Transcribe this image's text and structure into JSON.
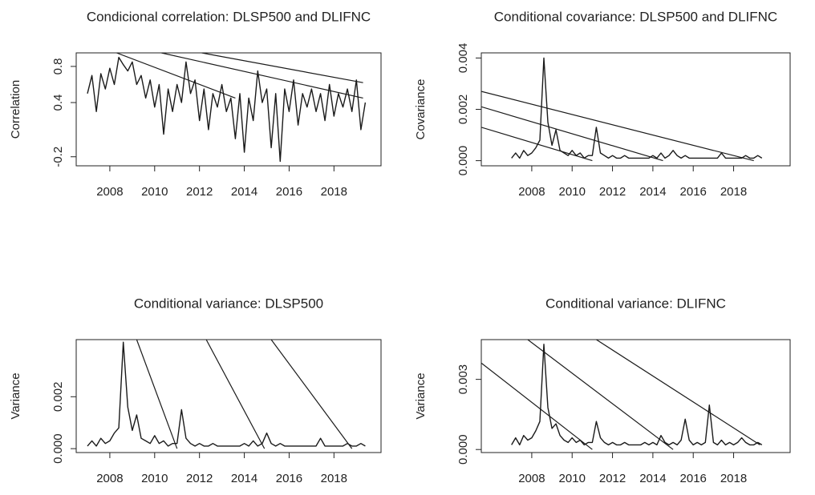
{
  "chart_data": [
    {
      "type": "line",
      "title": "Condicional correlation: DLSP500 and DLIFNC",
      "ylabel": "Correlation",
      "color": "#1a1a1a",
      "xlim": [
        2006.5,
        2020.1
      ],
      "ylim": [
        -0.3,
        0.95
      ],
      "xticks": [
        2008,
        2010,
        2012,
        2014,
        2016,
        2018
      ],
      "yticks": [
        -0.2,
        0.4,
        0.8
      ],
      "x": [
        2007.0,
        2007.2,
        2007.4,
        2007.6,
        2007.8,
        2008.0,
        2008.2,
        2008.4,
        2008.6,
        2008.8,
        2009.0,
        2009.2,
        2009.4,
        2009.6,
        2009.8,
        2010.0,
        2010.2,
        2010.4,
        2010.6,
        2010.8,
        2011.0,
        2011.2,
        2011.4,
        2011.6,
        2011.8,
        2012.0,
        2012.2,
        2012.4,
        2012.6,
        2012.8,
        2013.0,
        2013.2,
        2013.4,
        2013.6,
        2013.8,
        2014.0,
        2014.2,
        2014.4,
        2014.6,
        2014.8,
        2015.0,
        2015.2,
        2015.4,
        2015.6,
        2015.8,
        2016.0,
        2016.2,
        2016.4,
        2016.6,
        2016.8,
        2017.0,
        2017.2,
        2017.4,
        2017.6,
        2017.8,
        2018.0,
        2018.2,
        2018.4,
        2018.6,
        2018.8,
        2019.0,
        2019.2,
        2019.4
      ],
      "values": [
        0.5,
        0.7,
        0.3,
        0.72,
        0.55,
        0.78,
        0.6,
        0.9,
        0.82,
        0.75,
        0.85,
        0.6,
        0.7,
        0.45,
        0.65,
        0.35,
        0.6,
        0.05,
        0.55,
        0.3,
        0.6,
        0.4,
        0.85,
        0.5,
        0.65,
        0.2,
        0.55,
        0.1,
        0.5,
        0.35,
        0.6,
        0.3,
        0.45,
        0.0,
        0.5,
        -0.15,
        0.45,
        0.2,
        0.75,
        0.4,
        0.55,
        -0.1,
        0.5,
        -0.25,
        0.55,
        0.3,
        0.65,
        0.15,
        0.5,
        0.35,
        0.55,
        0.3,
        0.5,
        0.2,
        0.6,
        0.25,
        0.5,
        0.35,
        0.55,
        0.3,
        0.65,
        0.1,
        0.4
      ],
      "segments": [
        {
          "x": [
            2008.3,
            2013.6
          ],
          "y": [
            0.95,
            0.45
          ]
        },
        {
          "x": [
            2010.3,
            2019.3
          ],
          "y": [
            0.95,
            0.45
          ]
        },
        {
          "x": [
            2012.1,
            2019.3
          ],
          "y": [
            0.95,
            0.62
          ]
        }
      ]
    },
    {
      "type": "line",
      "title": "Conditional covariance: DLSP500 and DLIFNC",
      "ylabel": "Covariance",
      "color": "#1a1a1a",
      "xlim": [
        2005.5,
        2020.8
      ],
      "ylim": [
        -0.0002,
        0.0042
      ],
      "xticks": [
        2008,
        2010,
        2012,
        2014,
        2016,
        2018
      ],
      "yticks": [
        {
          "value": 0,
          "label": "0.000"
        },
        {
          "value": 0.002,
          "label": "0.002"
        },
        {
          "value": 0.004,
          "label": "0.004"
        }
      ],
      "x": [
        2007.0,
        2007.2,
        2007.4,
        2007.6,
        2007.8,
        2008.0,
        2008.2,
        2008.4,
        2008.6,
        2008.8,
        2009.0,
        2009.2,
        2009.4,
        2009.6,
        2009.8,
        2010.0,
        2010.2,
        2010.4,
        2010.6,
        2010.8,
        2011.0,
        2011.2,
        2011.4,
        2011.6,
        2011.8,
        2012.0,
        2012.2,
        2012.4,
        2012.6,
        2012.8,
        2013.0,
        2013.2,
        2013.4,
        2013.6,
        2013.8,
        2014.0,
        2014.2,
        2014.4,
        2014.6,
        2014.8,
        2015.0,
        2015.2,
        2015.4,
        2015.6,
        2015.8,
        2016.0,
        2016.2,
        2016.4,
        2016.6,
        2016.8,
        2017.0,
        2017.2,
        2017.4,
        2017.6,
        2017.8,
        2018.0,
        2018.2,
        2018.4,
        2018.6,
        2018.8,
        2019.0,
        2019.2,
        2019.4
      ],
      "values": [
        0.0001,
        0.0003,
        0.0001,
        0.0004,
        0.0002,
        0.0003,
        0.0005,
        0.0008,
        0.004,
        0.0015,
        0.0006,
        0.0012,
        0.0004,
        0.0003,
        0.0002,
        0.0004,
        0.0002,
        0.0003,
        0.0001,
        0.0002,
        0.0002,
        0.0013,
        0.0003,
        0.0002,
        0.0001,
        0.0002,
        0.0001,
        0.0001,
        0.0002,
        0.0001,
        0.0001,
        0.0001,
        0.0001,
        0.0001,
        0.0001,
        0.0002,
        0.0001,
        0.0003,
        0.0001,
        0.0002,
        0.0004,
        0.0002,
        0.0001,
        0.0002,
        0.0001,
        0.0001,
        0.0001,
        0.0001,
        0.0001,
        0.0001,
        0.0001,
        0.0001,
        0.0003,
        0.0001,
        0.0001,
        0.0001,
        0.0001,
        0.0001,
        0.0002,
        0.0001,
        0.0001,
        0.0002,
        0.0001
      ],
      "segments": [
        {
          "x": [
            2005.5,
            2019.0
          ],
          "y": [
            0.0027,
            0.0
          ]
        },
        {
          "x": [
            2005.5,
            2014.5
          ],
          "y": [
            0.0021,
            0.0
          ]
        },
        {
          "x": [
            2005.5,
            2011.0
          ],
          "y": [
            0.0013,
            0.0
          ]
        }
      ]
    },
    {
      "type": "line",
      "title": "Conditional variance: DLSP500",
      "ylabel": "Variance",
      "color": "#1a1a1a",
      "xlim": [
        2006.5,
        2020.1
      ],
      "ylim": [
        -0.00015,
        0.0042
      ],
      "xticks": [
        2008,
        2010,
        2012,
        2014,
        2016,
        2018
      ],
      "yticks": [
        {
          "value": 0,
          "label": "0.000"
        },
        {
          "value": 0.002,
          "label": "0.002"
        }
      ],
      "x": [
        2007.0,
        2007.2,
        2007.4,
        2007.6,
        2007.8,
        2008.0,
        2008.2,
        2008.4,
        2008.6,
        2008.8,
        2009.0,
        2009.2,
        2009.4,
        2009.6,
        2009.8,
        2010.0,
        2010.2,
        2010.4,
        2010.6,
        2010.8,
        2011.0,
        2011.2,
        2011.4,
        2011.6,
        2011.8,
        2012.0,
        2012.2,
        2012.4,
        2012.6,
        2012.8,
        2013.0,
        2013.2,
        2013.4,
        2013.6,
        2013.8,
        2014.0,
        2014.2,
        2014.4,
        2014.6,
        2014.8,
        2015.0,
        2015.2,
        2015.4,
        2015.6,
        2015.8,
        2016.0,
        2016.2,
        2016.4,
        2016.6,
        2016.8,
        2017.0,
        2017.2,
        2017.4,
        2017.6,
        2017.8,
        2018.0,
        2018.2,
        2018.4,
        2018.6,
        2018.8,
        2019.0,
        2019.2,
        2019.4
      ],
      "values": [
        0.0001,
        0.0003,
        0.0001,
        0.0004,
        0.0002,
        0.0003,
        0.0006,
        0.0008,
        0.0041,
        0.0016,
        0.0007,
        0.0013,
        0.0004,
        0.0003,
        0.0002,
        0.0005,
        0.0002,
        0.0003,
        0.0001,
        0.0002,
        0.0002,
        0.0015,
        0.0004,
        0.0002,
        0.0001,
        0.0002,
        0.0001,
        0.0001,
        0.0002,
        0.0001,
        0.0001,
        0.0001,
        0.0001,
        0.0001,
        0.0001,
        0.0002,
        0.0001,
        0.0003,
        0.0001,
        0.0002,
        0.0006,
        0.0002,
        0.0001,
        0.0002,
        0.0001,
        0.0001,
        0.0001,
        0.0001,
        0.0001,
        0.0001,
        0.0001,
        0.0001,
        0.0004,
        0.0001,
        0.0001,
        0.0001,
        0.0001,
        0.0001,
        0.0002,
        0.0001,
        0.0001,
        0.0002,
        0.0001
      ],
      "segments": [
        {
          "x": [
            2009.2,
            2011.0
          ],
          "y": [
            0.0042,
            0.0
          ]
        },
        {
          "x": [
            2012.3,
            2014.9
          ],
          "y": [
            0.0042,
            0.0
          ]
        },
        {
          "x": [
            2015.2,
            2018.8
          ],
          "y": [
            0.0042,
            0.0
          ]
        }
      ]
    },
    {
      "type": "line",
      "title": "Conditional variance: DLIFNC",
      "ylabel": "Variance",
      "color": "#1a1a1a",
      "xlim": [
        2005.5,
        2020.8
      ],
      "ylim": [
        -0.00013,
        0.0047
      ],
      "xticks": [
        2008,
        2010,
        2012,
        2014,
        2016,
        2018
      ],
      "yticks": [
        {
          "value": 0,
          "label": "0.000"
        },
        {
          "value": 0.003,
          "label": "0.003"
        }
      ],
      "x": [
        2007.0,
        2007.2,
        2007.4,
        2007.6,
        2007.8,
        2008.0,
        2008.2,
        2008.4,
        2008.6,
        2008.8,
        2009.0,
        2009.2,
        2009.4,
        2009.6,
        2009.8,
        2010.0,
        2010.2,
        2010.4,
        2010.6,
        2010.8,
        2011.0,
        2011.2,
        2011.4,
        2011.6,
        2011.8,
        2012.0,
        2012.2,
        2012.4,
        2012.6,
        2012.8,
        2013.0,
        2013.2,
        2013.4,
        2013.6,
        2013.8,
        2014.0,
        2014.2,
        2014.4,
        2014.6,
        2014.8,
        2015.0,
        2015.2,
        2015.4,
        2015.6,
        2015.8,
        2016.0,
        2016.2,
        2016.4,
        2016.6,
        2016.8,
        2017.0,
        2017.2,
        2017.4,
        2017.6,
        2017.8,
        2018.0,
        2018.2,
        2018.4,
        2018.6,
        2018.8,
        2019.0,
        2019.2,
        2019.4
      ],
      "values": [
        0.0002,
        0.0005,
        0.0002,
        0.0006,
        0.0004,
        0.0005,
        0.0008,
        0.0012,
        0.0045,
        0.0018,
        0.0009,
        0.0011,
        0.0006,
        0.0004,
        0.0003,
        0.0005,
        0.0003,
        0.0004,
        0.0002,
        0.0003,
        0.0003,
        0.0012,
        0.0005,
        0.0003,
        0.0002,
        0.0003,
        0.0002,
        0.0002,
        0.0003,
        0.0002,
        0.0002,
        0.0002,
        0.0002,
        0.0003,
        0.0002,
        0.0003,
        0.0002,
        0.0006,
        0.0003,
        0.0002,
        0.0003,
        0.0002,
        0.0004,
        0.0013,
        0.0004,
        0.0002,
        0.0003,
        0.0002,
        0.0003,
        0.0019,
        0.0003,
        0.0002,
        0.0004,
        0.0002,
        0.0003,
        0.0002,
        0.0003,
        0.0005,
        0.0003,
        0.0002,
        0.0002,
        0.0003,
        0.0002
      ],
      "segments": [
        {
          "x": [
            2005.5,
            2011.0
          ],
          "y": [
            0.0037,
            0.0
          ]
        },
        {
          "x": [
            2007.8,
            2015.0
          ],
          "y": [
            0.0047,
            0.0
          ]
        },
        {
          "x": [
            2011.2,
            2019.3
          ],
          "y": [
            0.0047,
            0.0002
          ]
        }
      ]
    }
  ]
}
